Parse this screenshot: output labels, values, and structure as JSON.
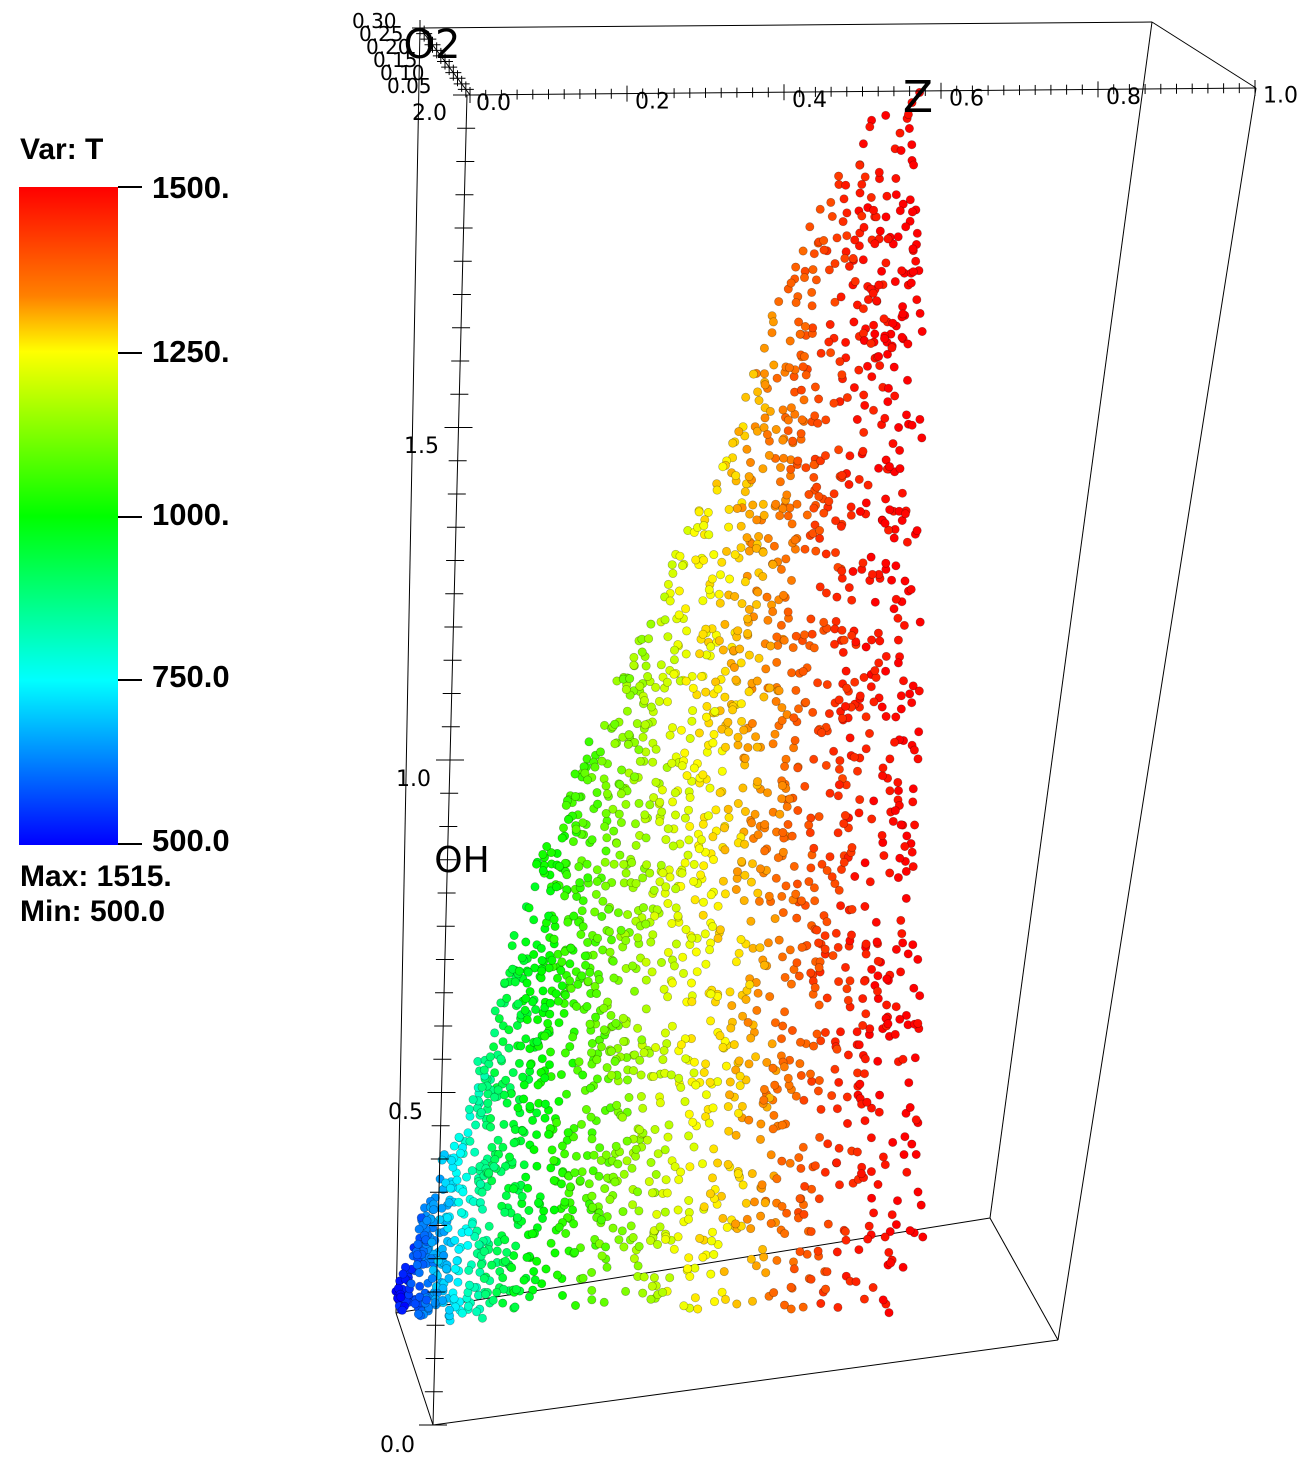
{
  "legend": {
    "title": "Var: T",
    "ticks": [
      "1500.",
      "1250.",
      "1000.",
      "750.0",
      "500.0"
    ],
    "max_label": "Max:  1515.",
    "min_label": "Min:  500.0",
    "colormap": [
      "#0000ff",
      "#00ffff",
      "#00ff00",
      "#ffff00",
      "#ff8000",
      "#ff0000"
    ]
  },
  "axes": {
    "z": {
      "title": "Z",
      "ticks": [
        "0.0",
        "0.2",
        "0.4",
        "0.6",
        "0.8",
        "1.0"
      ],
      "range": [
        0,
        1
      ]
    },
    "oh": {
      "title": "OH",
      "ticks": [
        "0.0",
        "0.5",
        "1.0",
        "1.5",
        "2.0"
      ],
      "range": [
        0,
        2
      ]
    },
    "o2": {
      "title": "O2",
      "ticks": [
        "0.05",
        "0.10",
        "0.15",
        "0.20",
        "0.25",
        "0.30"
      ],
      "range": [
        0,
        0.3
      ]
    }
  },
  "chart_data": {
    "type": "scatter",
    "projection": "3d",
    "color_variable": "T",
    "color_range": [
      500,
      1500
    ],
    "x_axis": "Z",
    "y_axis": "OH",
    "z_axis": "O2",
    "xlim": [
      0,
      1
    ],
    "ylim": [
      0,
      2
    ],
    "zlim": [
      0,
      0.3
    ],
    "point_cloud_envelope": {
      "Z_min": 0.0,
      "Z_max": 0.55,
      "OH_at_Z": [
        {
          "Z": 0.0,
          "OH_min": 0.3,
          "OH_max": 0.33,
          "T": 500
        },
        {
          "Z": 0.05,
          "OH_min": 0.28,
          "OH_max": 0.52,
          "T": 700
        },
        {
          "Z": 0.1,
          "OH_min": 0.28,
          "OH_max": 0.72,
          "T": 900
        },
        {
          "Z": 0.15,
          "OH_min": 0.29,
          "OH_max": 0.95,
          "T": 1000
        },
        {
          "Z": 0.2,
          "OH_min": 0.3,
          "OH_max": 1.1,
          "T": 1080
        },
        {
          "Z": 0.25,
          "OH_min": 0.31,
          "OH_max": 1.25,
          "T": 1150
        },
        {
          "Z": 0.3,
          "OH_min": 0.3,
          "OH_max": 1.4,
          "T": 1230
        },
        {
          "Z": 0.35,
          "OH_min": 0.3,
          "OH_max": 1.55,
          "T": 1280
        },
        {
          "Z": 0.4,
          "OH_min": 0.3,
          "OH_max": 1.75,
          "T": 1340
        },
        {
          "Z": 0.45,
          "OH_min": 0.3,
          "OH_max": 1.9,
          "T": 1420
        },
        {
          "Z": 0.5,
          "OH_min": 0.3,
          "OH_max": 2.0,
          "T": 1480
        },
        {
          "Z": 0.55,
          "OH_min": 0.3,
          "OH_max": 2.05,
          "T": 1515
        }
      ]
    }
  }
}
